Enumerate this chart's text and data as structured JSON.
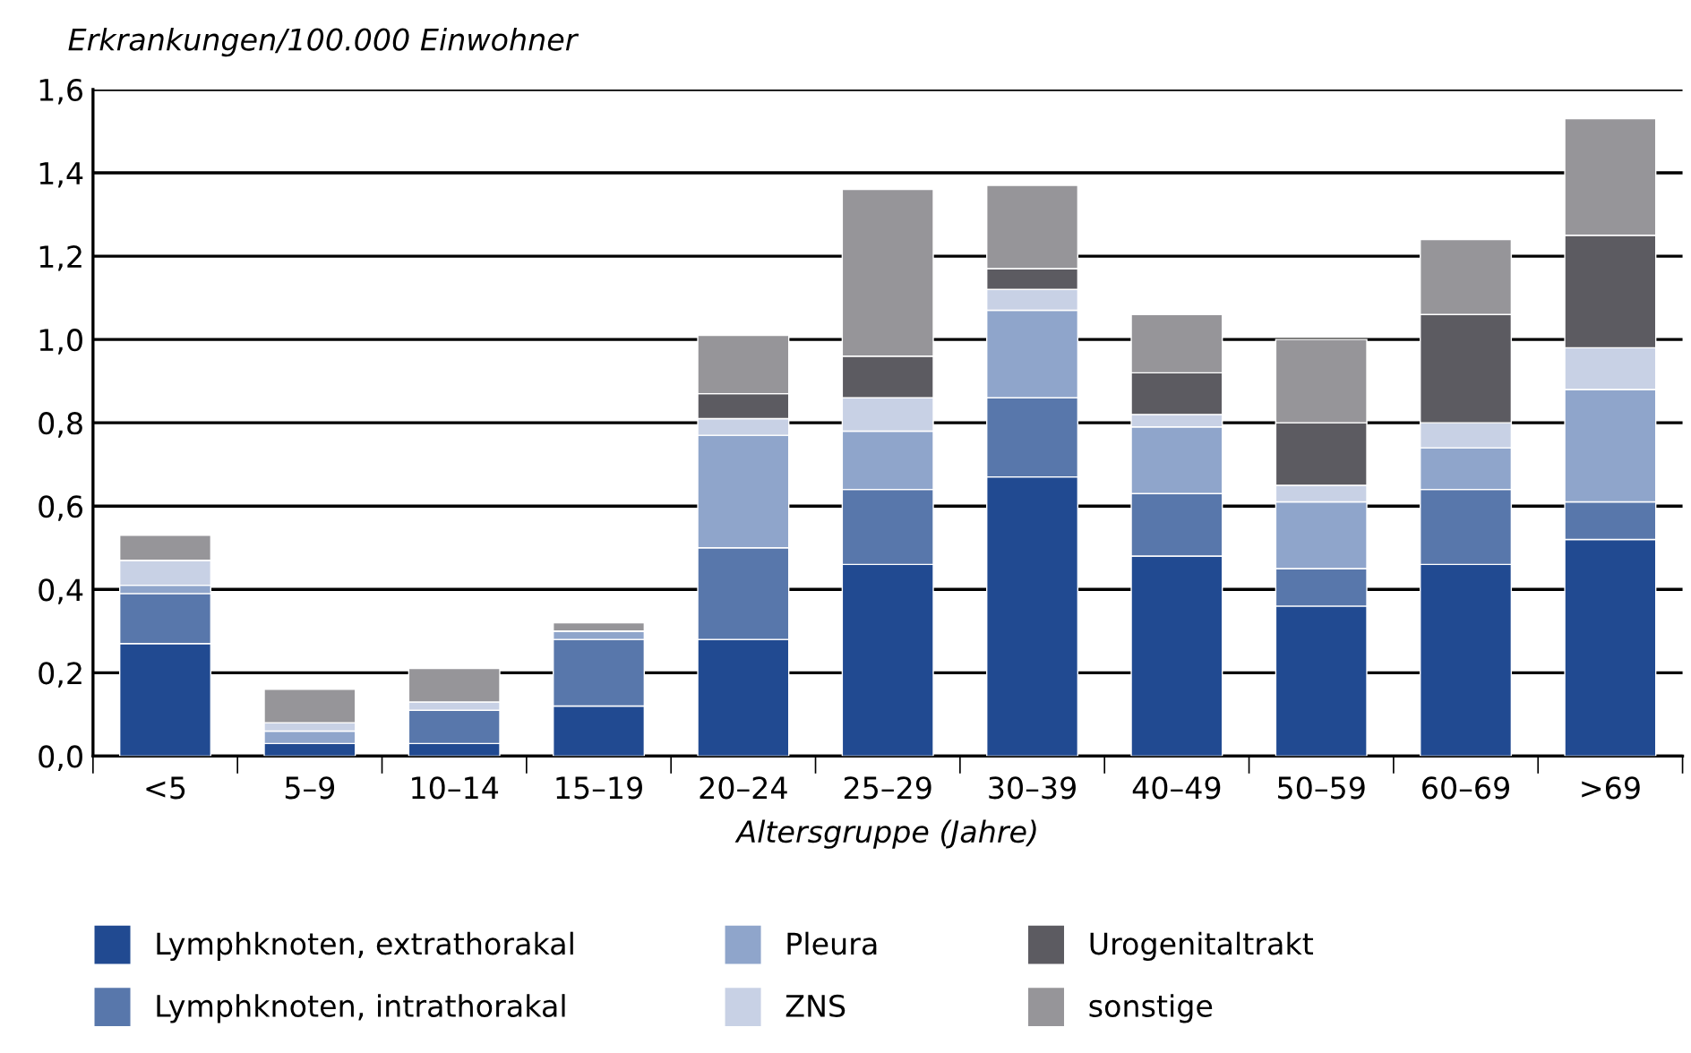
{
  "chart_data": {
    "type": "bar",
    "stacked": true,
    "ylabel": "Erkrankungen/100.000 Einwohner",
    "xlabel": "Altersgruppe (Jahre)",
    "categories": [
      "<5",
      "5–9",
      "10–14",
      "15–19",
      "20–24",
      "25–29",
      "30–39",
      "40–49",
      "50–59",
      "60–69",
      ">69"
    ],
    "series": [
      {
        "name": "Lymphknoten, extrathorakal",
        "color": "#214a91",
        "values": [
          0.27,
          0.03,
          0.03,
          0.12,
          0.28,
          0.46,
          0.67,
          0.48,
          0.36,
          0.46,
          0.52
        ]
      },
      {
        "name": "Lymphknoten, intrathorakal",
        "color": "#5877ab",
        "values": [
          0.12,
          0,
          0.08,
          0.16,
          0.22,
          0.18,
          0.19,
          0.15,
          0.09,
          0.18,
          0.09
        ]
      },
      {
        "name": "Pleura",
        "color": "#8fa5cb",
        "values": [
          0.02,
          0.03,
          0,
          0.02,
          0.27,
          0.14,
          0.21,
          0.16,
          0.16,
          0.1,
          0.27
        ]
      },
      {
        "name": "ZNS",
        "color": "#c8d1e5",
        "values": [
          0.06,
          0.02,
          0.02,
          0,
          0.04,
          0.08,
          0.05,
          0.03,
          0.04,
          0.06,
          0.1
        ]
      },
      {
        "name": "Urogenitaltrakt",
        "color": "#5c5b61",
        "values": [
          0,
          0,
          0,
          0,
          0.06,
          0.1,
          0.05,
          0.1,
          0.15,
          0.26,
          0.27
        ]
      },
      {
        "name": "sonstige",
        "color": "#969599",
        "values": [
          0.06,
          0.08,
          0.08,
          0.02,
          0.14,
          0.4,
          0.2,
          0.14,
          0.2,
          0.18,
          0.28
        ]
      }
    ],
    "ylim": [
      0,
      1.6
    ],
    "yticks": [
      {
        "value": 0,
        "label": "0,0"
      },
      {
        "value": 0.2,
        "label": "0,2"
      },
      {
        "value": 0.4,
        "label": "0,4"
      },
      {
        "value": 0.6,
        "label": "0,6"
      },
      {
        "value": 0.8,
        "label": "0,8"
      },
      {
        "value": 1.0,
        "label": "1,0"
      },
      {
        "value": 1.2,
        "label": "1,2"
      },
      {
        "value": 1.4,
        "label": "1,4"
      },
      {
        "value": 1.6,
        "label": "1,6"
      }
    ],
    "grid": "y",
    "legend": "bottom"
  }
}
